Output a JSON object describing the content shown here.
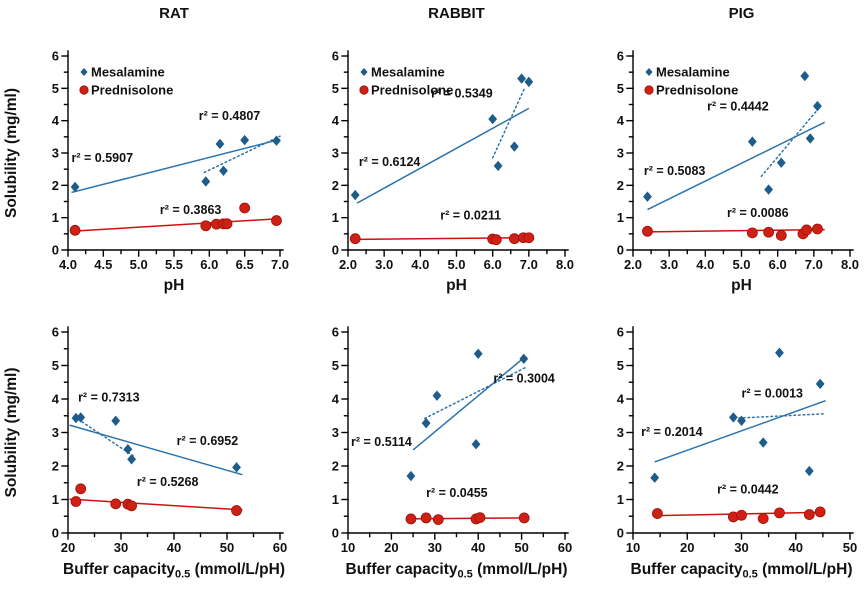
{
  "figure": {
    "ylabel": "Solubility (mg/ml)",
    "series_names": [
      "Mesalamine",
      "Prednisolone"
    ],
    "yticks": [
      {
        "v": 0,
        "label": "0"
      },
      {
        "v": 1,
        "label": "1"
      },
      {
        "v": 2,
        "label": "2"
      },
      {
        "v": 3,
        "label": "3"
      },
      {
        "v": 4,
        "label": "4"
      },
      {
        "v": 5,
        "label": "5"
      },
      {
        "v": 6,
        "label": "6"
      }
    ],
    "colors": {
      "mesalamine_marker": "#1e5c8a",
      "mesalamine_line": "#2b72ab",
      "prednisolone_marker": "#cf2015",
      "prednisolone_marker_edge": "#9c1208",
      "prednisolone_line": "#cc1210",
      "text_blue": "#2e75b6",
      "text_red": "#cc1210",
      "text_black": "#1a1a1a",
      "axis": "#000000"
    }
  },
  "chart_data": [
    {
      "id": "rat-ph",
      "type": "scatter",
      "title": "RAT",
      "xlabel": {
        "text": "pH",
        "sub": "",
        "rest": ""
      },
      "ylabel": "Solubility (mg/ml)",
      "xlim": [
        4,
        7
      ],
      "ylim": [
        0,
        6
      ],
      "legend": true,
      "xticks": [
        {
          "v": 4,
          "label": "4.0"
        },
        {
          "v": 4.5,
          "label": "4.5"
        },
        {
          "v": 5,
          "label": "5.0"
        },
        {
          "v": 5.5,
          "label": "5.5"
        },
        {
          "v": 6,
          "label": "6.0"
        },
        {
          "v": 6.5,
          "label": "6.5"
        },
        {
          "v": 7,
          "label": "7.0"
        }
      ],
      "series": [
        {
          "name": "Mesalamine",
          "marker": "diamond",
          "points": [
            [
              4.1,
              1.95
            ],
            [
              5.95,
              2.12
            ],
            [
              6.15,
              3.28
            ],
            [
              6.2,
              2.45
            ],
            [
              6.5,
              3.4
            ],
            [
              6.95,
              3.38
            ]
          ]
        },
        {
          "name": "Prednisolone",
          "marker": "circle",
          "points": [
            [
              4.1,
              0.61
            ],
            [
              5.95,
              0.75
            ],
            [
              6.1,
              0.8
            ],
            [
              6.2,
              0.81
            ],
            [
              6.25,
              0.81
            ],
            [
              6.5,
              1.3
            ],
            [
              6.95,
              0.91
            ]
          ]
        }
      ],
      "trend_lines": [
        {
          "series": "Mesalamine",
          "style": "solid",
          "from": [
            4.05,
            1.78
          ],
          "to": [
            7.0,
            3.42
          ],
          "r2_label": "r² = 0.5907",
          "label_color": "black",
          "label_pos": [
            4.05,
            2.72
          ]
        },
        {
          "series": "Mesalamine",
          "style": "dotted",
          "from": [
            5.93,
            2.4
          ],
          "to": [
            7.0,
            3.52
          ],
          "r2_label": "r² = 0.4807",
          "label_color": "blue",
          "label_pos": [
            5.85,
            4.02
          ]
        },
        {
          "series": "Prednisolone",
          "style": "solid",
          "from": [
            4.05,
            0.58
          ],
          "to": [
            7.0,
            0.97
          ],
          "r2_label": "r² = 0.3863",
          "label_color": "red",
          "label_pos": [
            5.3,
            1.12
          ]
        }
      ]
    },
    {
      "id": "rabbit-ph",
      "type": "scatter",
      "title": "RABBIT",
      "xlabel": {
        "text": "pH",
        "sub": "",
        "rest": ""
      },
      "ylabel": "",
      "xlim": [
        2,
        8
      ],
      "ylim": [
        0,
        6
      ],
      "legend": true,
      "xticks": [
        {
          "v": 2,
          "label": "2.0"
        },
        {
          "v": 3,
          "label": "3.0"
        },
        {
          "v": 4,
          "label": "4.0"
        },
        {
          "v": 5,
          "label": "5.0"
        },
        {
          "v": 6,
          "label": "6.0"
        },
        {
          "v": 7,
          "label": "7.0"
        },
        {
          "v": 8,
          "label": "8.0"
        }
      ],
      "series": [
        {
          "name": "Mesalamine",
          "marker": "diamond",
          "points": [
            [
              2.2,
              1.7
            ],
            [
              6.0,
              4.05
            ],
            [
              6.15,
              2.6
            ],
            [
              6.6,
              3.2
            ],
            [
              6.8,
              5.3
            ],
            [
              7.0,
              5.2
            ]
          ]
        },
        {
          "name": "Prednisolone",
          "marker": "circle",
          "points": [
            [
              2.2,
              0.35
            ],
            [
              6.0,
              0.34
            ],
            [
              6.1,
              0.32
            ],
            [
              6.6,
              0.35
            ],
            [
              6.85,
              0.38
            ],
            [
              7.0,
              0.38
            ]
          ]
        }
      ],
      "trend_lines": [
        {
          "series": "Mesalamine",
          "style": "solid",
          "from": [
            2.25,
            1.45
          ],
          "to": [
            7.0,
            4.38
          ],
          "r2_label": "r² = 0.6124",
          "label_color": "black",
          "label_pos": [
            2.3,
            2.6
          ]
        },
        {
          "series": "Mesalamine",
          "style": "dotted",
          "from": [
            6.0,
            2.85
          ],
          "to": [
            6.88,
            5.0
          ],
          "r2_label": "r² = 0.5349",
          "label_color": "blue",
          "label_pos": [
            4.3,
            4.72
          ]
        },
        {
          "series": "Prednisolone",
          "style": "solid",
          "from": [
            2.2,
            0.33
          ],
          "to": [
            7.05,
            0.38
          ],
          "r2_label": "r² = 0.0211",
          "label_color": "red",
          "label_pos": [
            4.55,
            0.95
          ]
        }
      ]
    },
    {
      "id": "pig-ph",
      "type": "scatter",
      "title": "PIG",
      "xlabel": {
        "text": "pH",
        "sub": "",
        "rest": ""
      },
      "ylabel": "",
      "xlim": [
        2,
        8
      ],
      "ylim": [
        0,
        6
      ],
      "legend": true,
      "xticks": [
        {
          "v": 2,
          "label": "2.0"
        },
        {
          "v": 3,
          "label": "3.0"
        },
        {
          "v": 4,
          "label": "4.0"
        },
        {
          "v": 5,
          "label": "5.0"
        },
        {
          "v": 6,
          "label": "6.0"
        },
        {
          "v": 7,
          "label": "7.0"
        },
        {
          "v": 8,
          "label": "8.0"
        }
      ],
      "series": [
        {
          "name": "Mesalamine",
          "marker": "diamond",
          "points": [
            [
              2.4,
              1.65
            ],
            [
              5.3,
              3.35
            ],
            [
              5.75,
              1.87
            ],
            [
              6.1,
              2.7
            ],
            [
              6.75,
              5.38
            ],
            [
              6.9,
              3.45
            ],
            [
              7.1,
              4.45
            ]
          ]
        },
        {
          "name": "Prednisolone",
          "marker": "circle",
          "points": [
            [
              2.4,
              0.58
            ],
            [
              5.3,
              0.53
            ],
            [
              5.75,
              0.55
            ],
            [
              6.1,
              0.45
            ],
            [
              6.7,
              0.5
            ],
            [
              6.8,
              0.62
            ],
            [
              7.1,
              0.65
            ]
          ]
        }
      ],
      "trend_lines": [
        {
          "series": "Mesalamine",
          "style": "solid",
          "from": [
            2.4,
            1.25
          ],
          "to": [
            7.3,
            3.95
          ],
          "r2_label": "r² = 0.5083",
          "label_color": "black",
          "label_pos": [
            2.3,
            2.32
          ]
        },
        {
          "series": "Mesalamine",
          "style": "dotted",
          "from": [
            5.55,
            2.28
          ],
          "to": [
            7.15,
            4.4
          ],
          "r2_label": "r² = 0.4442",
          "label_color": "blue",
          "label_pos": [
            4.05,
            4.32
          ]
        },
        {
          "series": "Prednisolone",
          "style": "solid",
          "from": [
            2.4,
            0.56
          ],
          "to": [
            7.3,
            0.63
          ],
          "r2_label": "r² = 0.0086",
          "label_color": "red",
          "label_pos": [
            4.6,
            1.02
          ]
        }
      ]
    },
    {
      "id": "rat-buffer",
      "type": "scatter",
      "title": "",
      "xlabel": {
        "text": "Buffer capacity",
        "sub": "0.5",
        "rest": " (mmol/L/pH)"
      },
      "ylabel": "Solubility (mg/ml)",
      "xlim": [
        20,
        60
      ],
      "ylim": [
        0,
        6
      ],
      "legend": false,
      "xticks": [
        {
          "v": 20,
          "label": "20"
        },
        {
          "v": 30,
          "label": "30"
        },
        {
          "v": 40,
          "label": "40"
        },
        {
          "v": 50,
          "label": "50"
        },
        {
          "v": 60,
          "label": "60"
        }
      ],
      "series": [
        {
          "name": "Mesalamine",
          "marker": "diamond",
          "points": [
            [
              21.5,
              3.43
            ],
            [
              22.4,
              3.45
            ],
            [
              29,
              3.35
            ],
            [
              31.3,
              2.5
            ],
            [
              32,
              2.2
            ],
            [
              51.8,
              1.96
            ]
          ]
        },
        {
          "name": "Prednisolone",
          "marker": "circle",
          "points": [
            [
              21.5,
              0.94
            ],
            [
              22.4,
              1.32
            ],
            [
              29,
              0.87
            ],
            [
              31.3,
              0.86
            ],
            [
              32,
              0.81
            ],
            [
              51.8,
              0.67
            ]
          ]
        }
      ],
      "trend_lines": [
        {
          "series": "Mesalamine",
          "style": "solid",
          "from": [
            20.3,
            3.22
          ],
          "to": [
            52.9,
            1.74
          ],
          "r2_label": "r² = 0.6952",
          "label_color": "black",
          "label_pos": [
            40.5,
            2.62
          ]
        },
        {
          "series": "Mesalamine",
          "style": "dotted",
          "from": [
            21.2,
            3.47
          ],
          "to": [
            32.7,
            2.26
          ],
          "r2_label": "r² = 0.7313",
          "label_color": "blue",
          "label_pos": [
            21.9,
            3.92
          ]
        },
        {
          "series": "Prednisolone",
          "style": "solid",
          "from": [
            20.3,
            1.01
          ],
          "to": [
            52.9,
            0.69
          ],
          "r2_label": "r² = 0.5268",
          "label_color": "red",
          "label_pos": [
            33,
            1.4
          ]
        }
      ]
    },
    {
      "id": "rabbit-buffer",
      "type": "scatter",
      "title": "",
      "xlabel": {
        "text": "Buffer capacity",
        "sub": "0.5",
        "rest": " (mmol/L/pH)"
      },
      "ylabel": "",
      "xlim": [
        10,
        60
      ],
      "ylim": [
        0,
        6
      ],
      "legend": false,
      "xticks": [
        {
          "v": 10,
          "label": "10"
        },
        {
          "v": 20,
          "label": "20"
        },
        {
          "v": 30,
          "label": "30"
        },
        {
          "v": 40,
          "label": "40"
        },
        {
          "v": 50,
          "label": "50"
        },
        {
          "v": 60,
          "label": "60"
        }
      ],
      "series": [
        {
          "name": "Mesalamine",
          "marker": "diamond",
          "points": [
            [
              24.5,
              1.7
            ],
            [
              28,
              3.28
            ],
            [
              30.5,
              4.1
            ],
            [
              39.5,
              2.65
            ],
            [
              40,
              5.35
            ],
            [
              50.5,
              5.2
            ]
          ]
        },
        {
          "name": "Prednisolone",
          "marker": "circle",
          "points": [
            [
              24.5,
              0.42
            ],
            [
              28,
              0.45
            ],
            [
              30.8,
              0.4
            ],
            [
              39.5,
              0.42
            ],
            [
              40.4,
              0.46
            ],
            [
              50.6,
              0.45
            ]
          ]
        }
      ],
      "trend_lines": [
        {
          "series": "Mesalamine",
          "style": "solid",
          "from": [
            25,
            2.48
          ],
          "to": [
            50.8,
            5.26
          ],
          "r2_label": "r² = 0.5114",
          "label_color": "black",
          "label_pos": [
            10.7,
            2.6
          ]
        },
        {
          "series": "Mesalamine",
          "style": "dotted",
          "from": [
            27.7,
            3.42
          ],
          "to": [
            51.2,
            4.96
          ],
          "r2_label": "r² = 0.3004",
          "label_color": "blue",
          "label_pos": [
            43.5,
            4.5
          ]
        },
        {
          "series": "Prednisolone",
          "style": "solid",
          "from": [
            24.5,
            0.42
          ],
          "to": [
            50.6,
            0.45
          ],
          "r2_label": "r² = 0.0455",
          "label_color": "red",
          "label_pos": [
            28,
            1.07
          ]
        }
      ]
    },
    {
      "id": "pig-buffer",
      "type": "scatter",
      "title": "",
      "xlabel": {
        "text": "Buffer capacity",
        "sub": "0.5",
        "rest": " (mmol/L/pH)"
      },
      "ylabel": "",
      "xlim": [
        10,
        50
      ],
      "ylim": [
        0,
        6
      ],
      "legend": false,
      "xticks": [
        {
          "v": 10,
          "label": "10"
        },
        {
          "v": 20,
          "label": "20"
        },
        {
          "v": 30,
          "label": "30"
        },
        {
          "v": 40,
          "label": "40"
        },
        {
          "v": 50,
          "label": "50"
        }
      ],
      "series": [
        {
          "name": "Mesalamine",
          "marker": "diamond",
          "points": [
            [
              14,
              1.65
            ],
            [
              28.5,
              3.45
            ],
            [
              30,
              3.35
            ],
            [
              34,
              2.7
            ],
            [
              37,
              5.38
            ],
            [
              42.5,
              1.85
            ],
            [
              44.5,
              4.45
            ]
          ]
        },
        {
          "name": "Prednisolone",
          "marker": "circle",
          "points": [
            [
              14.5,
              0.58
            ],
            [
              28.5,
              0.48
            ],
            [
              30,
              0.53
            ],
            [
              34,
              0.43
            ],
            [
              37,
              0.6
            ],
            [
              42.5,
              0.55
            ],
            [
              44.5,
              0.63
            ]
          ]
        }
      ],
      "trend_lines": [
        {
          "series": "Mesalamine",
          "style": "solid",
          "from": [
            14,
            2.12
          ],
          "to": [
            45.5,
            3.95
          ],
          "r2_label": "r² = 0.2014",
          "label_color": "black",
          "label_pos": [
            11.5,
            2.9
          ]
        },
        {
          "series": "Mesalamine",
          "style": "dotted",
          "from": [
            29.5,
            3.43
          ],
          "to": [
            45.5,
            3.56
          ],
          "r2_label": "r² = 0.0013",
          "label_color": "blue",
          "label_pos": [
            30,
            4.05
          ]
        },
        {
          "series": "Prednisolone",
          "style": "solid",
          "from": [
            14.5,
            0.52
          ],
          "to": [
            45,
            0.62
          ],
          "r2_label": "r² = 0.0442",
          "label_color": "red",
          "label_pos": [
            25.5,
            1.18
          ]
        }
      ]
    }
  ]
}
